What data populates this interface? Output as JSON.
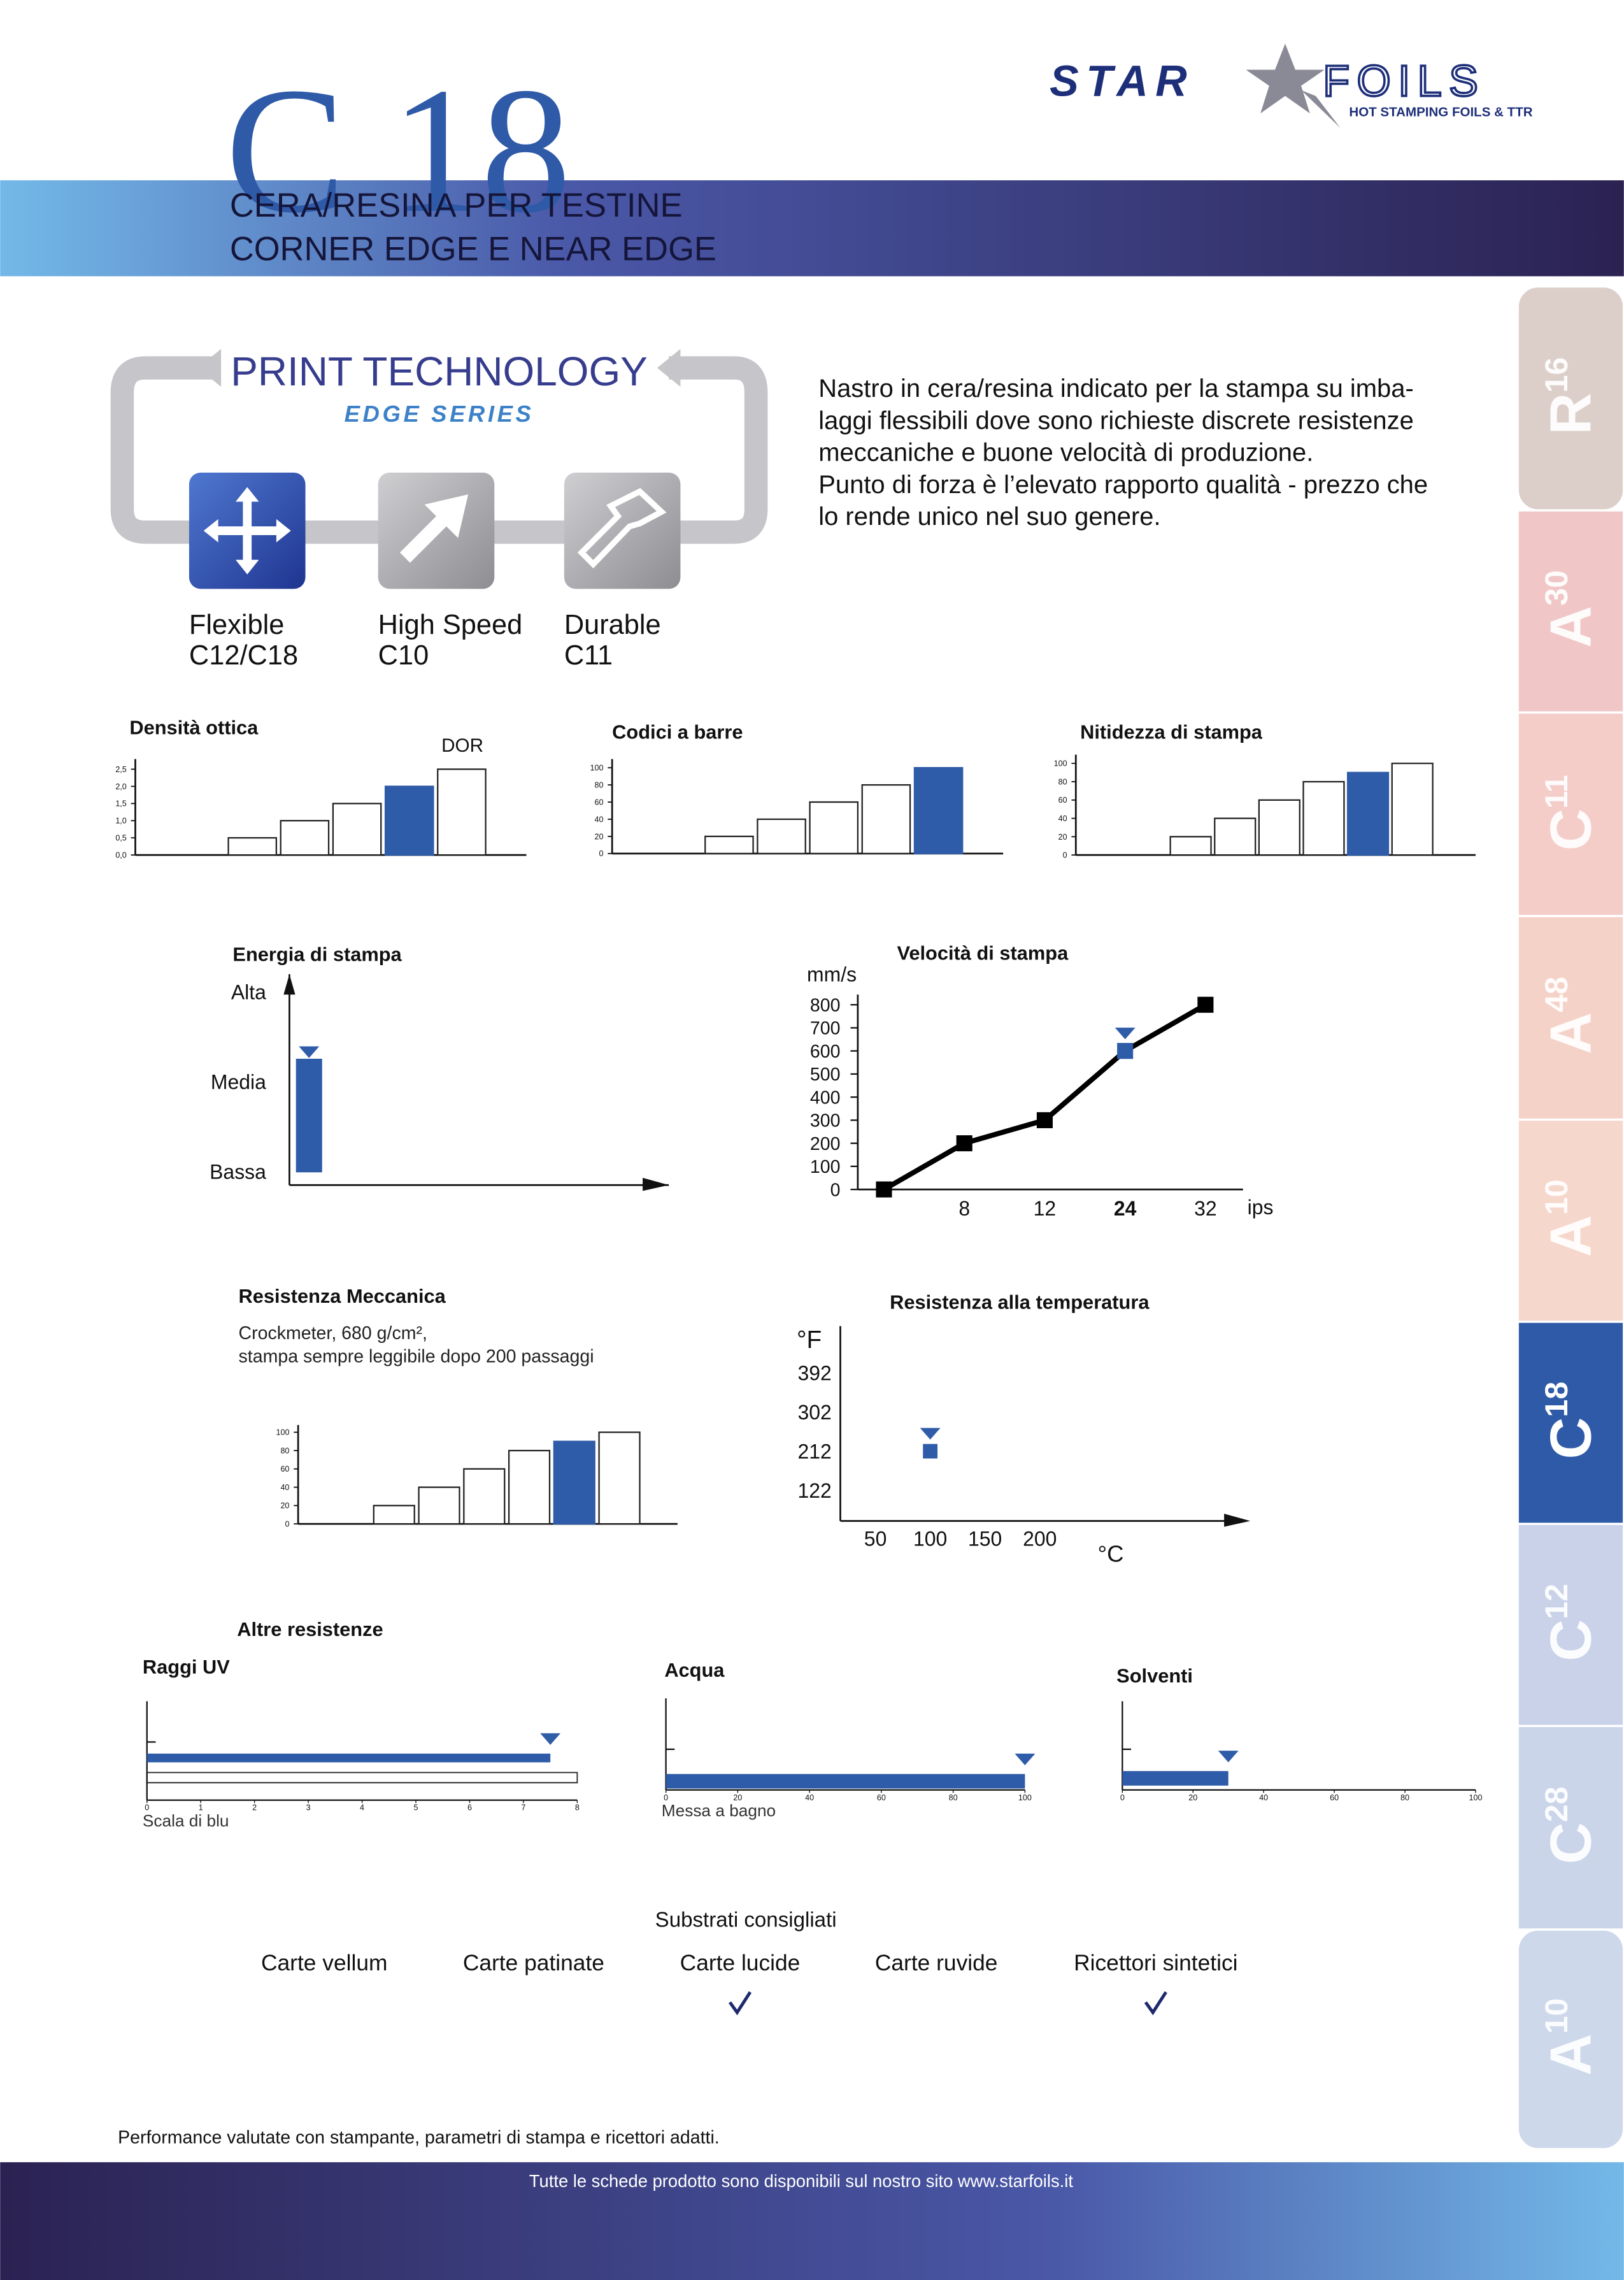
{
  "header": {
    "title": "C 18",
    "subtitle": [
      "CERA/RESINA PER TESTINE",
      "CORNER EDGE E NEAR EDGE"
    ]
  },
  "logo": {
    "brand": [
      "STAR",
      "FOILS"
    ],
    "tagline": "HOT STAMPING FOILS & TTR"
  },
  "tabs": [
    {
      "letter": "R",
      "number": "16",
      "color": "#dccfc9"
    },
    {
      "letter": "A",
      "number": "30",
      "color": "#f1c6c6"
    },
    {
      "letter": "C",
      "number": "11",
      "color": "#f4cdc9"
    },
    {
      "letter": "A",
      "number": "48",
      "color": "#f5d2c8"
    },
    {
      "letter": "A",
      "number": "10",
      "color": "#f6d7cb"
    },
    {
      "letter": "C",
      "number": "18",
      "color": "#2f5aa8",
      "active": true
    },
    {
      "letter": "C",
      "number": "12",
      "color": "#c9d2e8"
    },
    {
      "letter": "C",
      "number": "28",
      "color": "#cbd5ea"
    },
    {
      "letter": "A",
      "number": "10",
      "color": "#ced8eb"
    }
  ],
  "technology": {
    "title": "PRINT TECHNOLOGY",
    "series": "EDGE SERIES",
    "items": [
      {
        "name": "Flexible",
        "codes": "C12/C18"
      },
      {
        "name": "High Speed",
        "codes": "C10"
      },
      {
        "name": "Durable",
        "codes": "C11"
      }
    ]
  },
  "description": [
    "Nastro in cera/resina indicato per la stampa su imba-",
    "laggi flessibili dove sono richieste discrete resistenze",
    "meccaniche e buone velocità di produzione.",
    "Punto di forza è l’elevato rapporto qualità - prezzo che",
    "lo rende unico nel suo genere."
  ],
  "chart_data": [
    {
      "type": "bar",
      "title": "Densità ottica",
      "annotation": "DOR",
      "categories": [
        null,
        null,
        null,
        null,
        null
      ],
      "values": [
        0.5,
        1.0,
        1.5,
        2.0,
        2.5
      ],
      "color": "#2f5ca8",
      "highlight": 3,
      "ylim": [
        0,
        2.5
      ],
      "yticks": [
        {
          "value": 0,
          "label": "0,0"
        },
        {
          "value": 0.5,
          "label": "0,5"
        },
        {
          "value": 1,
          "label": "1,0"
        },
        {
          "value": 1.5,
          "label": "1,5"
        },
        {
          "value": 2,
          "label": "2,0"
        },
        {
          "value": 2.5,
          "label": "2,5"
        }
      ]
    },
    {
      "type": "bar",
      "title": "Codici a barre",
      "categories": [
        null,
        null,
        null,
        null,
        null
      ],
      "values": [
        20,
        40,
        60,
        80,
        100
      ],
      "color": "#2f5ca8",
      "highlight": 4,
      "ylim": [
        0,
        100
      ],
      "yticks": [
        0,
        20,
        40,
        60,
        80,
        100
      ]
    },
    {
      "type": "bar",
      "title": "Nitidezza di stampa",
      "categories": [
        null,
        null,
        null,
        null,
        null,
        null
      ],
      "values": [
        20,
        40,
        60,
        80,
        90,
        100
      ],
      "color": "#2f5ca8",
      "highlight": 4,
      "ylim": [
        0,
        100
      ],
      "yticks": [
        0,
        20,
        40,
        60,
        80,
        100
      ]
    },
    {
      "type": "bar",
      "title": "Energia di stampa",
      "categories": [
        null
      ],
      "values": [
        1.25
      ],
      "color": "#2f5ca8",
      "highlight": 0,
      "ylim": [
        -0.15,
        2.2
      ],
      "yticks": [
        {
          "value": 0,
          "label": "Bassa"
        },
        {
          "value": 1,
          "label": "Media"
        },
        {
          "value": 2,
          "label": "Alta"
        }
      ]
    },
    {
      "type": "line",
      "title": "Velocità di stampa",
      "y_label": "mm/s",
      "x_label": "ips",
      "categories": [
        null,
        "8",
        "12",
        "24",
        "32"
      ],
      "values": [
        0,
        200,
        300,
        600,
        800
      ],
      "color": "#000000",
      "highlight_color": "#2f5ca8",
      "highlight": 3,
      "ylim": [
        0,
        800
      ],
      "yticks": [
        0,
        100,
        200,
        300,
        400,
        500,
        600,
        700,
        800
      ]
    },
    {
      "type": "bar",
      "title": "Resistenza Meccanica",
      "subtitle": [
        "Crockmeter, 680 g/cm²,",
        "stampa sempre leggibile dopo 200 passaggi"
      ],
      "categories": [
        null,
        null,
        null,
        null,
        null,
        null
      ],
      "values": [
        20,
        40,
        60,
        80,
        90,
        100
      ],
      "color": "#2f5ca8",
      "highlight": 4,
      "ylim": [
        0,
        100
      ],
      "yticks": [
        0,
        20,
        40,
        60,
        80,
        100
      ]
    },
    {
      "type": "scatter",
      "title": "Resistenza alla temperatura",
      "y_label": "°F",
      "x_label": "°C",
      "x": [
        100
      ],
      "y": [
        212
      ],
      "color": "#2f5ca8",
      "highlight": 0,
      "xlim": [
        18,
        392
      ],
      "xticks": [
        50,
        100,
        150,
        200
      ],
      "ylim": [
        52,
        499
      ],
      "yticks": [
        122,
        212,
        302,
        392
      ]
    },
    {
      "type": "barh",
      "title": "Raggi UV",
      "x_label": "Scala di blu",
      "categories": [
        null
      ],
      "values": [
        7.5
      ],
      "color": "#2f5ca8",
      "highlight": 0,
      "xlim": [
        0,
        8
      ],
      "xticks": [
        0,
        1,
        2,
        3,
        4,
        5,
        6,
        7,
        8
      ]
    },
    {
      "type": "barh",
      "title": "Acqua",
      "x_label": "Messa a bagno",
      "categories": [
        null
      ],
      "values": [
        100
      ],
      "color": "#2f5ca8",
      "highlight": 0,
      "xlim": [
        0,
        100
      ],
      "xticks": [
        0,
        20,
        40,
        60,
        80,
        100
      ]
    },
    {
      "type": "barh",
      "title": "Solventi",
      "categories": [
        null
      ],
      "values": [
        30
      ],
      "color": "#2f5ca8",
      "highlight": 0,
      "xlim": [
        0,
        100
      ],
      "xticks": [
        0,
        20,
        40,
        60,
        80,
        100
      ]
    }
  ],
  "sections": {
    "other": "Altre resistenze"
  },
  "substrates": {
    "title": "Substrati consigliati",
    "items": [
      {
        "name": "Carte vellum",
        "recommended": false
      },
      {
        "name": "Carte patinate",
        "recommended": false
      },
      {
        "name": "Carte lucide",
        "recommended": true
      },
      {
        "name": "Carte ruvide",
        "recommended": false
      },
      {
        "name": "Ricettori sintetici",
        "recommended": true
      }
    ]
  },
  "footnote": "Performance valutate con stampante, parametri di stampa e ricettori adatti.",
  "footer": "Tutte le schede prodotto sono disponibili sul nostro sito www.starfoils.it"
}
